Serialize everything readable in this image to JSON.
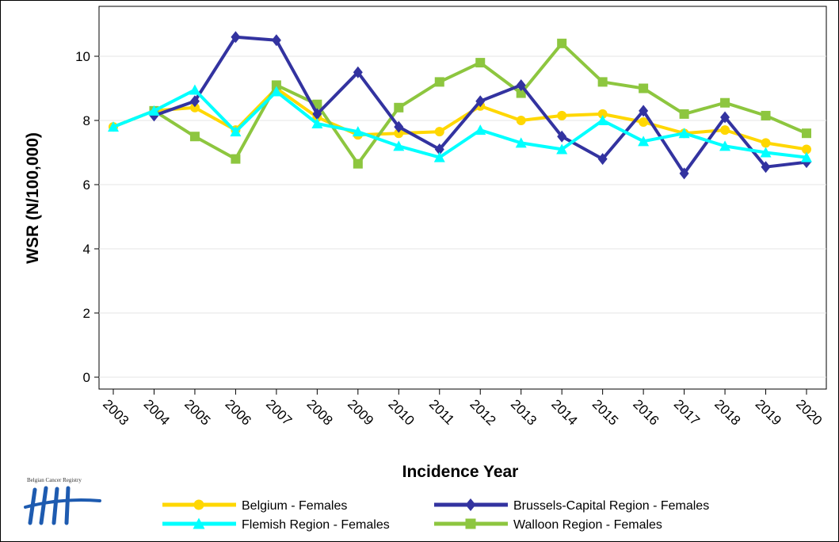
{
  "chart_data": {
    "type": "line",
    "xlabel": "Incidence Year",
    "ylabel": "WSR (N/100,000)",
    "ylim": [
      0,
      11
    ],
    "yticks": [
      0,
      2,
      4,
      6,
      8,
      10
    ],
    "grid": true,
    "legend_position": "bottom",
    "x": [
      "2003",
      "2004",
      "2005",
      "2006",
      "2007",
      "2008",
      "2009",
      "2010",
      "2011",
      "2012",
      "2013",
      "2014",
      "2015",
      "2016",
      "2017",
      "2018",
      "2019",
      "2020"
    ],
    "series": [
      {
        "name": "Belgium - Females",
        "color": "#FFD700",
        "marker": "circle",
        "values": [
          7.8,
          8.3,
          8.4,
          7.7,
          9.0,
          8.1,
          7.55,
          7.6,
          7.65,
          8.45,
          8.0,
          8.15,
          8.2,
          7.95,
          7.6,
          7.7,
          7.3,
          7.1
        ]
      },
      {
        "name": "Brussels-Capital Region - Females",
        "color": "#3333A0",
        "marker": "diamond",
        "values": [
          null,
          8.15,
          8.6,
          10.6,
          10.5,
          8.2,
          9.5,
          7.8,
          7.1,
          8.6,
          9.1,
          7.5,
          6.8,
          8.3,
          6.35,
          8.1,
          6.55,
          6.7
        ]
      },
      {
        "name": "Flemish Region - Females",
        "color": "#00FFFF",
        "marker": "triangle",
        "values": [
          7.8,
          8.3,
          8.95,
          7.65,
          8.9,
          7.9,
          7.65,
          7.2,
          6.85,
          7.7,
          7.3,
          7.1,
          8.0,
          7.35,
          7.6,
          7.2,
          7.0,
          6.85
        ]
      },
      {
        "name": "Walloon Region - Females",
        "color": "#8DC63F",
        "marker": "square",
        "values": [
          null,
          8.3,
          7.5,
          6.8,
          9.1,
          8.5,
          6.65,
          8.4,
          9.2,
          9.8,
          8.85,
          10.4,
          9.2,
          9.0,
          8.2,
          8.55,
          8.15,
          7.6
        ]
      }
    ]
  },
  "logo": {
    "text": "Belgian Cancer Registry"
  }
}
